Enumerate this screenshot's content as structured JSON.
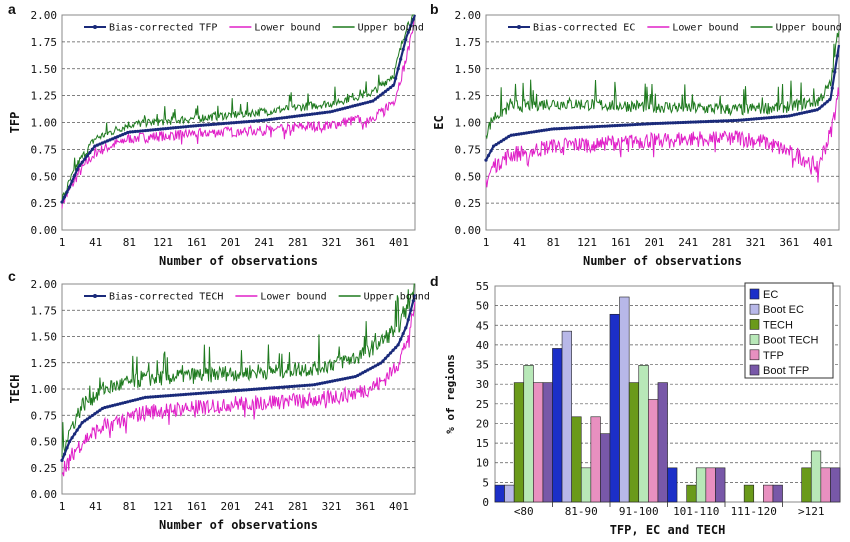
{
  "colors": {
    "bias": "#1a2a7a",
    "lower": "#e020c8",
    "upper": "#1f7a1f",
    "ec": "#1c2fc8",
    "boot_ec": "#b8b8e8",
    "tech": "#6a9a1a",
    "boot_tech": "#b8e8b8",
    "tfp": "#e890c0",
    "boot_tfp": "#7858a8"
  },
  "chart_data": [
    {
      "panel": "a",
      "type": "line",
      "ylabel": "TFP",
      "xlabel": "Number of observations",
      "ylim": [
        0,
        2.0
      ],
      "yticks": [
        "0.00",
        "0.25",
        "0.50",
        "0.75",
        "1.00",
        "1.25",
        "1.50",
        "1.75",
        "2.00"
      ],
      "xticks": [
        "1",
        "41",
        "81",
        "121",
        "161",
        "201",
        "241",
        "281",
        "321",
        "361",
        "401"
      ],
      "grid": "horizontal dashed",
      "legend": "top",
      "n": 420,
      "series": [
        {
          "name": "Bias-corrected TFP",
          "role": "bias",
          "shape": [
            [
              1,
              0.26
            ],
            [
              10,
              0.4
            ],
            [
              20,
              0.58
            ],
            [
              40,
              0.78
            ],
            [
              80,
              0.91
            ],
            [
              160,
              0.97
            ],
            [
              240,
              1.02
            ],
            [
              320,
              1.1
            ],
            [
              370,
              1.2
            ],
            [
              395,
              1.35
            ],
            [
              410,
              1.8
            ],
            [
              420,
              2.0
            ]
          ]
        },
        {
          "name": "Lower bound",
          "role": "lower",
          "shape": [
            [
              1,
              0.25
            ],
            [
              10,
              0.37
            ],
            [
              20,
              0.52
            ],
            [
              40,
              0.72
            ],
            [
              80,
              0.85
            ],
            [
              160,
              0.9
            ],
            [
              240,
              0.93
            ],
            [
              320,
              0.98
            ],
            [
              370,
              1.05
            ],
            [
              395,
              1.2
            ],
            [
              410,
              1.6
            ],
            [
              420,
              2.0
            ]
          ],
          "noise": 0.05
        },
        {
          "name": "Upper bound",
          "role": "upper",
          "shape": [
            [
              1,
              0.28
            ],
            [
              10,
              0.45
            ],
            [
              20,
              0.62
            ],
            [
              40,
              0.85
            ],
            [
              80,
              0.98
            ],
            [
              160,
              1.04
            ],
            [
              240,
              1.1
            ],
            [
              320,
              1.18
            ],
            [
              370,
              1.28
            ],
            [
              395,
              1.45
            ],
            [
              410,
              1.9
            ],
            [
              420,
              2.0
            ]
          ],
          "noise": 0.04
        }
      ]
    },
    {
      "panel": "b",
      "type": "line",
      "ylabel": "EC",
      "xlabel": "Number of observations",
      "ylim": [
        0,
        2.0
      ],
      "yticks": [
        "0.00",
        "0.25",
        "0.50",
        "0.75",
        "1.00",
        "1.25",
        "1.50",
        "1.75",
        "2.00"
      ],
      "xticks": [
        "1",
        "41",
        "81",
        "121",
        "161",
        "201",
        "241",
        "281",
        "321",
        "361",
        "401"
      ],
      "grid": "horizontal dashed",
      "legend": "top",
      "n": 420,
      "series": [
        {
          "name": "Bias-corrected EC",
          "role": "bias",
          "shape": [
            [
              1,
              0.65
            ],
            [
              10,
              0.78
            ],
            [
              30,
              0.88
            ],
            [
              80,
              0.94
            ],
            [
              200,
              0.99
            ],
            [
              300,
              1.02
            ],
            [
              360,
              1.06
            ],
            [
              395,
              1.12
            ],
            [
              410,
              1.22
            ],
            [
              420,
              1.72
            ]
          ]
        },
        {
          "name": "Lower bound",
          "role": "lower",
          "shape": [
            [
              1,
              0.45
            ],
            [
              10,
              0.6
            ],
            [
              30,
              0.7
            ],
            [
              80,
              0.78
            ],
            [
              200,
              0.84
            ],
            [
              300,
              0.86
            ],
            [
              330,
              0.82
            ],
            [
              370,
              0.7
            ],
            [
              395,
              0.6
            ],
            [
              410,
              0.9
            ],
            [
              420,
              1.3
            ]
          ],
          "noise": 0.08
        },
        {
          "name": "Upper bound",
          "role": "upper",
          "shape": [
            [
              1,
              0.9
            ],
            [
              10,
              1.05
            ],
            [
              30,
              1.15
            ],
            [
              80,
              1.18
            ],
            [
              200,
              1.15
            ],
            [
              300,
              1.12
            ],
            [
              360,
              1.15
            ],
            [
              395,
              1.2
            ],
            [
              410,
              1.35
            ],
            [
              420,
              1.9
            ]
          ],
          "noise": 0.06
        }
      ]
    },
    {
      "panel": "c",
      "type": "line",
      "ylabel": "TECH",
      "xlabel": "Number of observations",
      "ylim": [
        0,
        2.0
      ],
      "yticks": [
        "0.00",
        "0.25",
        "0.50",
        "0.75",
        "1.00",
        "1.25",
        "1.50",
        "1.75",
        "2.00"
      ],
      "xticks": [
        "1",
        "41",
        "81",
        "121",
        "161",
        "201",
        "241",
        "281",
        "321",
        "361",
        "401"
      ],
      "grid": "horizontal dashed",
      "legend": "top",
      "n": 420,
      "series": [
        {
          "name": "Bias-corrected TECH",
          "role": "bias",
          "shape": [
            [
              1,
              0.32
            ],
            [
              10,
              0.5
            ],
            [
              25,
              0.68
            ],
            [
              50,
              0.82
            ],
            [
              100,
              0.92
            ],
            [
              200,
              0.98
            ],
            [
              300,
              1.04
            ],
            [
              350,
              1.12
            ],
            [
              380,
              1.25
            ],
            [
              400,
              1.42
            ],
            [
              410,
              1.6
            ],
            [
              420,
              1.9
            ]
          ]
        },
        {
          "name": "Lower bound",
          "role": "lower",
          "shape": [
            [
              1,
              0.22
            ],
            [
              10,
              0.35
            ],
            [
              25,
              0.5
            ],
            [
              50,
              0.65
            ],
            [
              100,
              0.78
            ],
            [
              200,
              0.86
            ],
            [
              300,
              0.9
            ],
            [
              350,
              0.96
            ],
            [
              380,
              1.06
            ],
            [
              400,
              1.25
            ],
            [
              410,
              1.45
            ],
            [
              420,
              1.8
            ]
          ],
          "noise": 0.08
        },
        {
          "name": "Upper bound",
          "role": "upper",
          "shape": [
            [
              1,
              0.42
            ],
            [
              10,
              0.6
            ],
            [
              25,
              0.85
            ],
            [
              50,
              1.0
            ],
            [
              100,
              1.1
            ],
            [
              200,
              1.15
            ],
            [
              300,
              1.2
            ],
            [
              350,
              1.3
            ],
            [
              380,
              1.45
            ],
            [
              400,
              1.6
            ],
            [
              410,
              1.75
            ],
            [
              420,
              2.0
            ]
          ],
          "noise": 0.08
        }
      ]
    },
    {
      "panel": "d",
      "type": "bar",
      "ylabel": "% of regions",
      "xlabel": "TFP, EC and TECH",
      "ylim": [
        0,
        55
      ],
      "yticks": [
        "0",
        "5",
        "10",
        "15",
        "20",
        "25",
        "30",
        "35",
        "40",
        "45",
        "50",
        "55"
      ],
      "categories": [
        "<80",
        "81-90",
        "91-100",
        "101-110",
        "111-120",
        ">121"
      ],
      "legend": "top-right",
      "series": [
        {
          "name": "EC",
          "role": "ec",
          "values": [
            4.3,
            39.1,
            47.8,
            8.7,
            0,
            0
          ]
        },
        {
          "name": "Boot  EC",
          "role": "boot_ec",
          "values": [
            4.3,
            43.5,
            52.2,
            0,
            0,
            0
          ]
        },
        {
          "name": "TECH",
          "role": "tech",
          "values": [
            30.4,
            21.7,
            30.4,
            4.3,
            4.3,
            8.7
          ]
        },
        {
          "name": "Boot  TECH",
          "role": "boot_tech",
          "values": [
            34.8,
            8.7,
            34.8,
            8.7,
            0,
            13.0
          ]
        },
        {
          "name": "TFP",
          "role": "tfp",
          "values": [
            30.4,
            21.7,
            26.1,
            8.7,
            4.3,
            8.7
          ]
        },
        {
          "name": "Boot  TFP",
          "role": "boot_tfp",
          "values": [
            30.4,
            17.4,
            30.4,
            8.7,
            4.3,
            8.7
          ]
        }
      ]
    }
  ]
}
